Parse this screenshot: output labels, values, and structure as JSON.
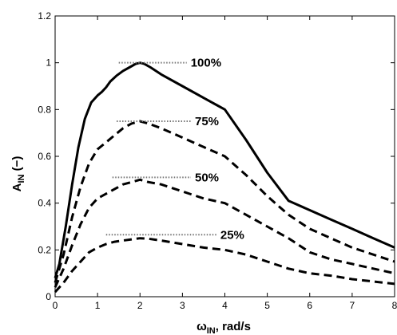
{
  "chart_data": {
    "type": "line",
    "xlabel": {
      "main": "ω",
      "sub": "IN",
      "suffix": ", rad/s"
    },
    "ylabel": {
      "main": "A",
      "sub": "IN",
      "suffix": " (−)"
    },
    "xlim": [
      0,
      8
    ],
    "ylim": [
      0,
      1.2
    ],
    "x_ticks": [
      "0",
      "1",
      "2",
      "3",
      "4",
      "5",
      "6",
      "7",
      "8"
    ],
    "y_ticks": [
      "0",
      "0.2",
      "0.4",
      "0.6",
      "0.8",
      "1",
      "1.2"
    ],
    "grid": false,
    "series": [
      {
        "style": "solid",
        "x": [
          0,
          0.1,
          0.25,
          0.4,
          0.55,
          0.7,
          0.85,
          1.0,
          1.1,
          1.2,
          1.3,
          1.45,
          1.6,
          1.75,
          1.9,
          2.0,
          2.1,
          2.25,
          2.5,
          3.0,
          3.5,
          3.8,
          4.0,
          4.5,
          5.0,
          5.5,
          6.0,
          6.5,
          7.0,
          7.5,
          8.0
        ],
        "y": [
          0.08,
          0.14,
          0.3,
          0.48,
          0.64,
          0.76,
          0.83,
          0.86,
          0.875,
          0.895,
          0.92,
          0.945,
          0.965,
          0.98,
          0.995,
          1.0,
          0.995,
          0.98,
          0.95,
          0.9,
          0.85,
          0.82,
          0.8,
          0.67,
          0.53,
          0.41,
          0.37,
          0.33,
          0.29,
          0.25,
          0.21
        ]
      },
      {
        "style": "dashed",
        "x": [
          0,
          0.2,
          0.4,
          0.6,
          0.8,
          1.0,
          1.2,
          1.4,
          1.6,
          1.8,
          2.0,
          2.2,
          2.5,
          3.0,
          3.5,
          4.0,
          4.5,
          5.0,
          5.5,
          6.0,
          6.5,
          7.0,
          7.5,
          8.0
        ],
        "y": [
          0.06,
          0.18,
          0.34,
          0.47,
          0.57,
          0.63,
          0.66,
          0.69,
          0.72,
          0.74,
          0.75,
          0.74,
          0.72,
          0.68,
          0.64,
          0.6,
          0.52,
          0.43,
          0.35,
          0.29,
          0.25,
          0.21,
          0.18,
          0.15
        ]
      },
      {
        "style": "dashed",
        "x": [
          0,
          0.2,
          0.4,
          0.6,
          0.8,
          1.0,
          1.2,
          1.4,
          1.6,
          1.8,
          2.0,
          2.2,
          2.5,
          3.0,
          3.5,
          4.0,
          4.5,
          5.0,
          5.5,
          6.0,
          6.5,
          7.0,
          7.5,
          8.0
        ],
        "y": [
          0.04,
          0.12,
          0.22,
          0.31,
          0.38,
          0.42,
          0.44,
          0.46,
          0.48,
          0.49,
          0.5,
          0.49,
          0.48,
          0.45,
          0.42,
          0.4,
          0.35,
          0.3,
          0.25,
          0.19,
          0.16,
          0.14,
          0.12,
          0.1
        ]
      },
      {
        "style": "dashed",
        "x": [
          0,
          0.2,
          0.4,
          0.6,
          0.8,
          1.0,
          1.2,
          1.4,
          1.6,
          1.8,
          2.0,
          2.2,
          2.5,
          3.0,
          3.5,
          4.0,
          4.5,
          5.0,
          5.5,
          6.0,
          6.5,
          7.0,
          7.5,
          8.0
        ],
        "y": [
          0.02,
          0.06,
          0.11,
          0.15,
          0.19,
          0.21,
          0.225,
          0.235,
          0.24,
          0.245,
          0.25,
          0.248,
          0.24,
          0.225,
          0.21,
          0.2,
          0.18,
          0.15,
          0.12,
          0.1,
          0.09,
          0.075,
          0.065,
          0.055
        ]
      }
    ],
    "annotations": [
      {
        "text": "100%",
        "x_from": 1.5,
        "x_to": 3.1,
        "y": 1.0
      },
      {
        "text": "75%",
        "x_from": 1.45,
        "x_to": 3.2,
        "y": 0.75
      },
      {
        "text": "50%",
        "x_from": 1.35,
        "x_to": 3.2,
        "y": 0.51
      },
      {
        "text": "25%",
        "x_from": 1.2,
        "x_to": 3.8,
        "y": 0.265
      }
    ]
  }
}
